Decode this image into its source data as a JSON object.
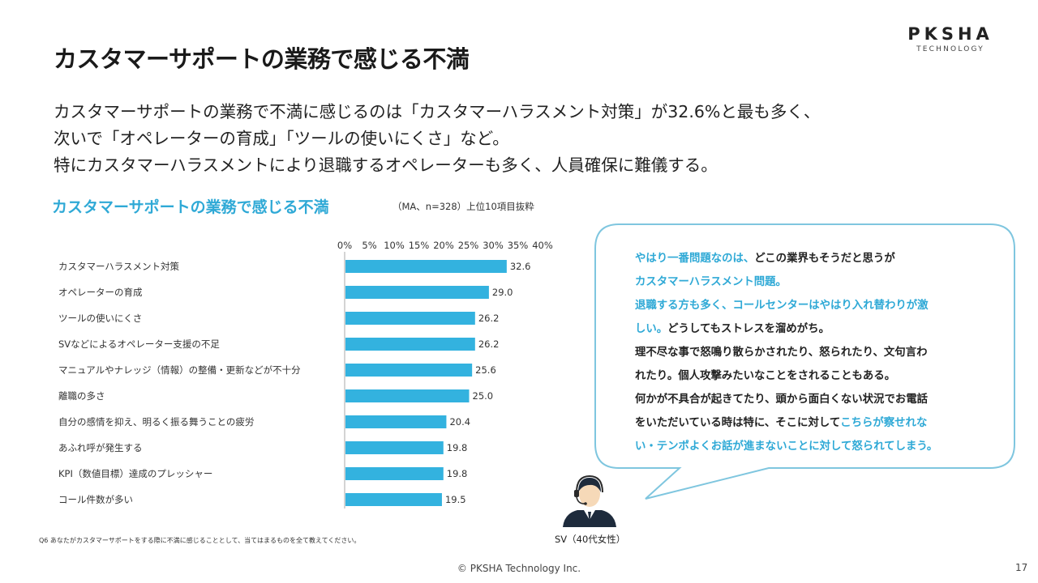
{
  "header": {
    "title": "カスタマーサポートの業務で感じる不満",
    "logo_main": "PKSHA",
    "logo_sub": "TECHNOLOGY"
  },
  "summary": {
    "lines": [
      "カスタマーサポートの業務で不満に感じるのは「カスタマーハラスメント対策」が32.6%と最も多く、",
      "次いで「オペレーターの育成」「ツールの使いにくさ」など。",
      "特にカスタマーハラスメントにより退職するオペレーターも多く、人員確保に難儀する。"
    ]
  },
  "chart_section": {
    "title": "カスタマーサポートの業務で感じる不満",
    "note": "（MA、n=328）上位10項目抜粋",
    "footnote": "Q6 あなたがカスタマーサポートをする際に不満に感じることとして、当てはまるものを全て教えてください。"
  },
  "chart_data": {
    "type": "bar",
    "orientation": "horizontal",
    "categories": [
      "カスタマーハラスメント対策",
      "オペレーターの育成",
      "ツールの使いにくさ",
      "SVなどによるオペレーター支援の不足",
      "マニュアルやナレッジ（情報）の整備・更新などが不十分",
      "離職の多さ",
      "自分の感情を抑え、明るく振る舞うことの疲労",
      "あふれ呼が発生する",
      "KPI（数値目標）達成のプレッシャー",
      "コール件数が多い"
    ],
    "values": [
      32.6,
      29.0,
      26.2,
      26.2,
      25.6,
      25.0,
      20.4,
      19.8,
      19.8,
      19.5
    ],
    "value_labels": [
      "32.6",
      "29.0",
      "26.2",
      "26.2",
      "25.6",
      "25.0",
      "20.4",
      "19.8",
      "19.8",
      "19.5"
    ],
    "xticks": [
      0,
      5,
      10,
      15,
      20,
      25,
      30,
      35,
      40
    ],
    "xtick_labels": [
      "0%",
      "5%",
      "10%",
      "15%",
      "20%",
      "25%",
      "30%",
      "35%",
      "40%"
    ],
    "xlim": [
      0,
      40
    ],
    "grid": false,
    "bar_color": "#33b2df"
  },
  "bubble": {
    "lines": [
      [
        {
          "t": "やはり一番問題なのは、",
          "hl": true
        },
        {
          "t": "どこの業界もそうだと思うが",
          "hl": false
        }
      ],
      [
        {
          "t": "カスタマーハラスメント問題。",
          "hl": true
        }
      ],
      [
        {
          "t": "退職する方も多く、コールセンターはやはり入れ替わりが激",
          "hl": true
        }
      ],
      [
        {
          "t": "しい。",
          "hl": true
        },
        {
          "t": "どうしてもストレスを溜めがち。",
          "hl": false
        }
      ],
      [
        {
          "t": "理不尽な事で怒鳴り散らかされたり、怒られたり、文句言わ",
          "hl": false
        }
      ],
      [
        {
          "t": "れたり。個人攻撃みたいなことをされることもある。",
          "hl": false
        }
      ],
      [
        {
          "t": "何かが不具合が起きてたり、頭から面白くない状況でお電話",
          "hl": false
        }
      ],
      [
        {
          "t": "をいただいている時は特に、そこに対して",
          "hl": false
        },
        {
          "t": "こちらが察せれな",
          "hl": true
        }
      ],
      [
        {
          "t": "い・テンポよくお話が進まないことに対して怒られてしまう。",
          "hl": true
        }
      ]
    ],
    "speaker": "SV（40代女性）",
    "border_color": "#7fc6df",
    "highlight_color": "#2fa9d6"
  },
  "footer": {
    "copyright": "© PKSHA Technology Inc.",
    "page_number": "17"
  }
}
